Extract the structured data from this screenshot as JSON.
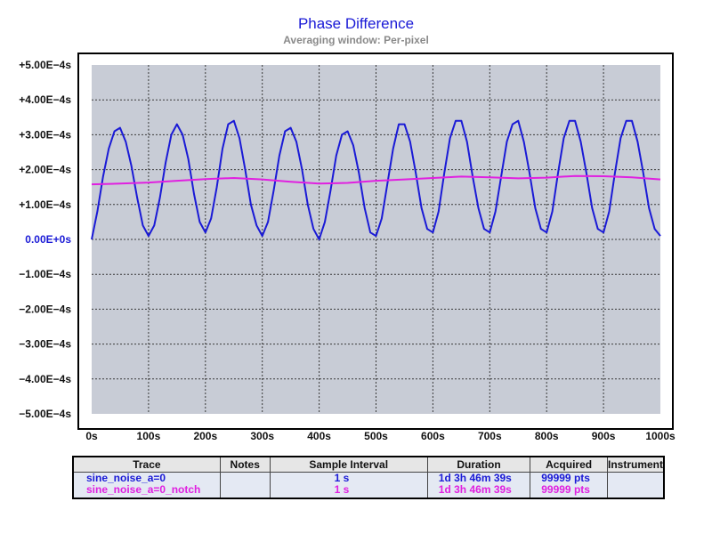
{
  "chart_data": {
    "type": "line",
    "title": "Phase Difference",
    "subtitle": "Averaging window: Per-pixel",
    "xlabel": "",
    "ylabel": "",
    "xlim": [
      0,
      1000
    ],
    "ylim": [
      -0.0005,
      0.0005
    ],
    "grid": true,
    "x_ticks": [
      "0s",
      "100s",
      "200s",
      "300s",
      "400s",
      "500s",
      "600s",
      "700s",
      "800s",
      "900s",
      "1000s"
    ],
    "y_ticks": [
      "+5.00E−4s",
      "+4.00E−4s",
      "+3.00E−4s",
      "+2.00E−4s",
      "+1.00E−4s",
      "0.00E+0s",
      "−1.00E−4s",
      "−2.00E−4s",
      "−3.00E−4s",
      "−4.00E−4s",
      "−5.00E−4s"
    ],
    "series": [
      {
        "name": "sine_noise_a=0",
        "color": "#1a1ad6",
        "x": [
          0,
          10,
          20,
          30,
          40,
          50,
          60,
          70,
          80,
          90,
          100,
          110,
          120,
          130,
          140,
          150,
          160,
          170,
          180,
          190,
          200,
          210,
          220,
          230,
          240,
          250,
          260,
          270,
          280,
          290,
          300,
          310,
          320,
          330,
          340,
          350,
          360,
          370,
          380,
          390,
          400,
          410,
          420,
          430,
          440,
          450,
          460,
          470,
          480,
          490,
          500,
          510,
          520,
          530,
          540,
          550,
          560,
          570,
          580,
          590,
          600,
          610,
          620,
          630,
          640,
          650,
          660,
          670,
          680,
          690,
          700,
          710,
          720,
          730,
          740,
          750,
          760,
          770,
          780,
          790,
          800,
          810,
          820,
          830,
          840,
          850,
          860,
          870,
          880,
          890,
          900,
          910,
          920,
          930,
          940,
          950,
          960,
          970,
          980,
          990,
          1000
        ],
        "y": [
          0.0,
          8e-05,
          0.00018,
          0.00026,
          0.00031,
          0.00032,
          0.00028,
          0.00021,
          0.00012,
          4e-05,
          1e-05,
          4e-05,
          0.00012,
          0.00022,
          0.0003,
          0.00033,
          0.0003,
          0.00023,
          0.00013,
          5e-05,
          2e-05,
          6e-05,
          0.00015,
          0.00026,
          0.00033,
          0.00034,
          0.00029,
          0.0002,
          0.0001,
          4e-05,
          1e-05,
          5e-05,
          0.00014,
          0.00024,
          0.00031,
          0.00032,
          0.00028,
          0.0002,
          0.0001,
          3e-05,
          0.0,
          5e-05,
          0.00014,
          0.00024,
          0.0003,
          0.00031,
          0.00027,
          0.00019,
          9e-05,
          2e-05,
          1e-05,
          6e-05,
          0.00016,
          0.00026,
          0.00033,
          0.00033,
          0.00028,
          0.00019,
          9e-05,
          3e-05,
          2e-05,
          8e-05,
          0.00019,
          0.00029,
          0.00034,
          0.00034,
          0.00028,
          0.00018,
          9e-05,
          3e-05,
          2e-05,
          8e-05,
          0.00018,
          0.00028,
          0.00033,
          0.00034,
          0.00028,
          0.00019,
          9e-05,
          3e-05,
          2e-05,
          8e-05,
          0.00019,
          0.00029,
          0.00034,
          0.00034,
          0.00028,
          0.00019,
          9e-05,
          3e-05,
          2e-05,
          8e-05,
          0.00019,
          0.00029,
          0.00034,
          0.00034,
          0.00028,
          0.00019,
          9e-05,
          3e-05,
          1e-05
        ]
      },
      {
        "name": "sine_noise_a=0_notch",
        "color": "#e020e0",
        "x": [
          0,
          50,
          100,
          150,
          200,
          250,
          300,
          350,
          400,
          450,
          500,
          550,
          600,
          650,
          700,
          750,
          800,
          850,
          900,
          950,
          1000
        ],
        "y": [
          0.000158,
          0.00016,
          0.000163,
          0.000168,
          0.000173,
          0.000176,
          0.000172,
          0.000165,
          0.00016,
          0.000162,
          0.000168,
          0.000172,
          0.000176,
          0.00018,
          0.000178,
          0.000175,
          0.000177,
          0.000182,
          0.000181,
          0.000178,
          0.000172
        ]
      }
    ]
  },
  "legend_table": {
    "headers": [
      "Trace",
      "Notes",
      "Sample Interval",
      "Duration",
      "Acquired",
      "Instrument"
    ],
    "rows": [
      {
        "trace": "sine_noise_a=0",
        "notes": "",
        "sample_interval": "1 s",
        "duration": "1d 3h 46m 39s",
        "acquired": "99999 pts",
        "instrument": ""
      },
      {
        "trace": "sine_noise_a=0_notch",
        "notes": "",
        "sample_interval": "1 s",
        "duration": "1d 3h 46m 39s",
        "acquired": "99999 pts",
        "instrument": ""
      }
    ]
  }
}
